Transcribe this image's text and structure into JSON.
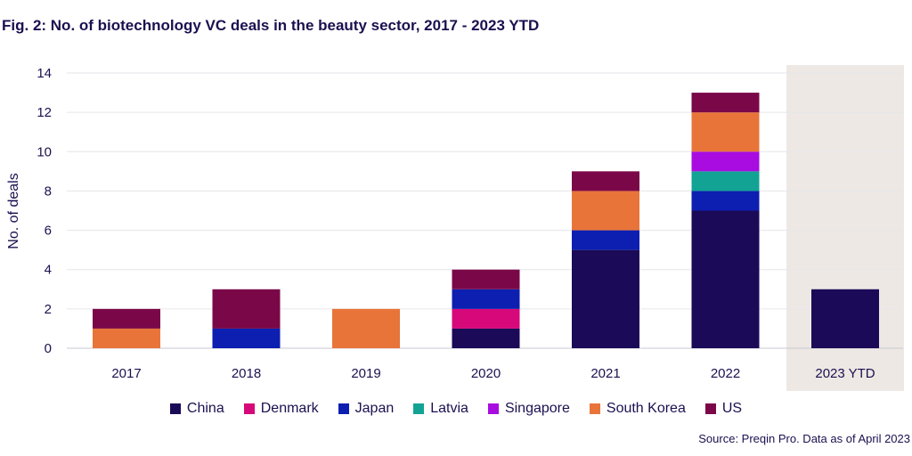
{
  "chart_data": {
    "type": "bar",
    "stacked": true,
    "title": "Fig. 2: No. of biotechnology VC deals in the beauty sector, 2017 - 2023 YTD",
    "xlabel": "",
    "ylabel": "No. of deals",
    "ylim": [
      0,
      14
    ],
    "yticks": [
      0,
      2,
      4,
      6,
      8,
      10,
      12,
      14
    ],
    "grid": true,
    "legend_position": "bottom",
    "highlighted_category": "2023 YTD",
    "highlight_color": "#ede8e4",
    "categories": [
      "2017",
      "2018",
      "2019",
      "2020",
      "2021",
      "2022",
      "2023 YTD"
    ],
    "series": [
      {
        "name": "China",
        "color": "#1b0a57",
        "values": [
          0,
          0,
          0,
          1,
          5,
          7,
          3
        ]
      },
      {
        "name": "Denmark",
        "color": "#d6087a",
        "values": [
          0,
          0,
          0,
          1,
          0,
          0,
          0
        ]
      },
      {
        "name": "Japan",
        "color": "#0c1fb0",
        "values": [
          0,
          1,
          0,
          1,
          1,
          1,
          0
        ]
      },
      {
        "name": "Latvia",
        "color": "#12a395",
        "values": [
          0,
          0,
          0,
          0,
          0,
          1,
          0
        ]
      },
      {
        "name": "Singapore",
        "color": "#a80ce0",
        "values": [
          0,
          0,
          0,
          0,
          0,
          1,
          0
        ]
      },
      {
        "name": "South Korea",
        "color": "#e8743a",
        "values": [
          1,
          0,
          2,
          0,
          2,
          2,
          0
        ]
      },
      {
        "name": "US",
        "color": "#7a0848",
        "values": [
          1,
          2,
          0,
          1,
          1,
          1,
          0
        ]
      }
    ],
    "source": "Source: Preqin Pro. Data as of April 2023"
  }
}
